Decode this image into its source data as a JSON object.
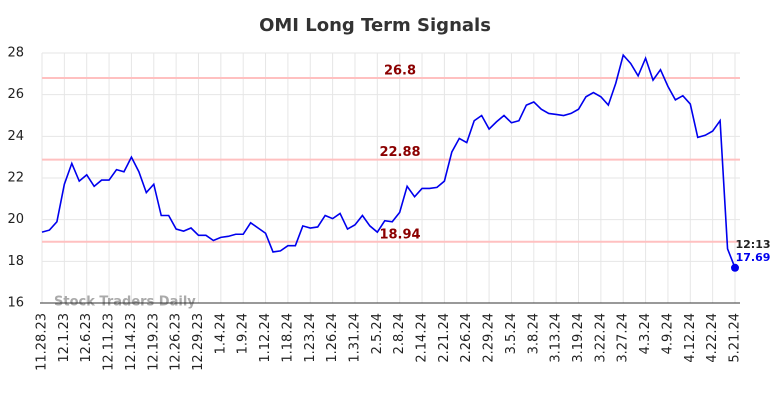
{
  "chart_data": {
    "type": "line",
    "title": "OMI Long Term Signals",
    "categories": [
      "11.28.23",
      null,
      null,
      "12.1.23",
      null,
      null,
      "12.6.23",
      null,
      null,
      "12.11.23",
      null,
      null,
      "12.14.23",
      null,
      null,
      "12.19.23",
      null,
      null,
      "12.26.23",
      null,
      null,
      "12.29.23",
      null,
      null,
      "1.4.24",
      null,
      null,
      "1.9.24",
      null,
      null,
      "1.12.24",
      null,
      null,
      "1.18.24",
      null,
      null,
      "1.23.24",
      null,
      null,
      "1.26.24",
      null,
      null,
      "1.31.24",
      null,
      null,
      "2.5.24",
      null,
      null,
      "2.8.24",
      null,
      null,
      "2.14.24",
      null,
      null,
      "2.21.24",
      null,
      null,
      "2.26.24",
      null,
      null,
      "2.29.24",
      null,
      null,
      "3.5.24",
      null,
      null,
      "3.8.24",
      null,
      null,
      "3.13.24",
      null,
      null,
      "3.19.24",
      null,
      null,
      "3.22.24",
      null,
      null,
      "3.27.24",
      null,
      null,
      "4.3.24",
      null,
      null,
      "4.9.24",
      null,
      null,
      "4.12.24",
      null,
      null,
      "4.22.24",
      null,
      null,
      "5.21.24"
    ],
    "values": [
      19.4,
      19.5,
      19.9,
      21.7,
      22.7,
      21.85,
      22.15,
      21.6,
      21.9,
      21.9,
      22.4,
      22.3,
      23.0,
      22.3,
      21.3,
      21.7,
      20.2,
      20.2,
      19.55,
      19.45,
      19.6,
      19.25,
      19.25,
      19.0,
      19.15,
      19.2,
      19.3,
      19.3,
      19.85,
      19.6,
      19.35,
      18.45,
      18.5,
      18.75,
      18.75,
      19.7,
      19.6,
      19.65,
      20.2,
      20.05,
      20.3,
      19.55,
      19.75,
      20.2,
      19.7,
      19.4,
      19.95,
      19.9,
      20.35,
      21.6,
      21.1,
      21.5,
      21.5,
      21.55,
      21.85,
      23.25,
      23.9,
      23.7,
      24.75,
      25.0,
      24.35,
      24.7,
      25.0,
      24.65,
      24.75,
      25.5,
      25.65,
      25.3,
      25.1,
      25.05,
      25.0,
      25.1,
      25.3,
      25.9,
      26.1,
      25.9,
      25.5,
      26.55,
      27.9,
      27.5,
      26.9,
      27.75,
      26.7,
      27.2,
      26.4,
      25.75,
      25.95,
      25.55,
      23.95,
      24.05,
      24.25,
      24.75,
      18.6,
      17.69
    ],
    "color": "#0000ee",
    "signal_lines": [
      26.8,
      22.88,
      18.94
    ],
    "signal_color": "#ffc0c0",
    "last_time": "12:13",
    "watermark": "Stock Traders Daily",
    "ylim": [
      16,
      28
    ],
    "yticks": [
      16,
      18,
      20,
      22,
      24,
      26,
      28
    ],
    "grid": true
  }
}
